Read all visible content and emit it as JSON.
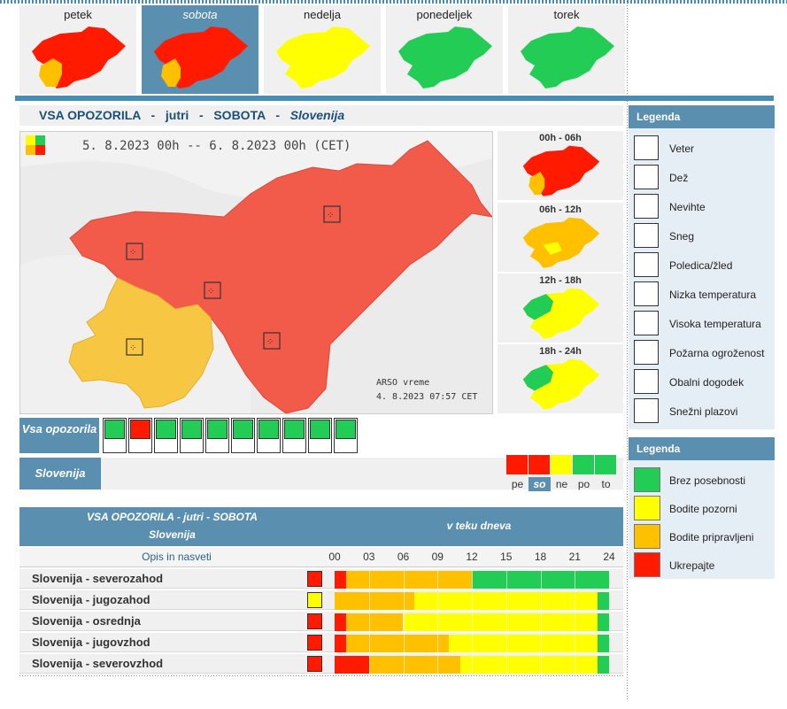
{
  "colors": {
    "green": "#22cc55",
    "yellow": "#ffff00",
    "orange": "#ffc000",
    "red": "#ff1a00",
    "map_red": "#f25a4a",
    "map_orange": "#f7c744",
    "accent": "#5a8fb0"
  },
  "days": [
    {
      "label": "petek",
      "selected": false,
      "level": "red"
    },
    {
      "label": "sobota",
      "selected": true,
      "level": "red"
    },
    {
      "label": "nedelja",
      "selected": false,
      "level": "yellow"
    },
    {
      "label": "ponedeljek",
      "selected": false,
      "level": "green"
    },
    {
      "label": "torek",
      "selected": false,
      "level": "green"
    }
  ],
  "main_title": {
    "prefix": "VSA OPOZORILA",
    "sep1": "-",
    "day": "jutri",
    "sep2": "-",
    "dayname": "SOBOTA",
    "sep3": "-",
    "region": "Slovenija"
  },
  "map": {
    "period": "5. 8.2023  00h  --  6. 8.2023  00h      (CET)",
    "credit": "ARSO vreme",
    "issued": "4. 8.2023  07:57 CET"
  },
  "periods": [
    {
      "label": "00h - 06h"
    },
    {
      "label": "06h - 12h"
    },
    {
      "label": "12h - 18h"
    },
    {
      "label": "18h - 24h"
    }
  ],
  "icon_row": {
    "label": "Vsa opozorila",
    "icons": [
      "wind-icon",
      "rain-icon",
      "thunderstorm-icon",
      "snow-icon",
      "ice-icon",
      "low-temperature-icon",
      "high-temperature-icon",
      "fire-icon",
      "coastal-icon",
      "avalanche-icon"
    ],
    "levels": [
      "green",
      "red",
      "green",
      "green",
      "green",
      "green",
      "green",
      "green",
      "green",
      "green"
    ]
  },
  "region_row": {
    "label": "Slovenija"
  },
  "week": [
    {
      "label": "pe",
      "level": "red",
      "selected": false
    },
    {
      "label": "so",
      "level": "red",
      "selected": true
    },
    {
      "label": "ne",
      "level": "yellow",
      "selected": false
    },
    {
      "label": "po",
      "level": "green",
      "selected": false
    },
    {
      "label": "to",
      "level": "green",
      "selected": false
    }
  ],
  "table": {
    "title1": "VSA OPOZORILA - jutri - SOBOTA",
    "title2": "Slovenija",
    "title3": "v teku dneva",
    "desc_header": "Opis in nasveti",
    "hours": [
      "00",
      "03",
      "06",
      "09",
      "12",
      "15",
      "18",
      "21",
      "24"
    ],
    "rows": [
      {
        "name": "Slovenija - severozahod",
        "icon_level": "red",
        "segments": [
          [
            "red",
            0,
            1
          ],
          [
            "orange",
            1,
            12
          ],
          [
            "green",
            12,
            24
          ]
        ]
      },
      {
        "name": "Slovenija - jugozahod",
        "icon_level": "yellow",
        "segments": [
          [
            "orange",
            0,
            7
          ],
          [
            "yellow",
            7,
            23
          ],
          [
            "green",
            23,
            24
          ]
        ]
      },
      {
        "name": "Slovenija - osrednja",
        "icon_level": "red",
        "segments": [
          [
            "red",
            0,
            1
          ],
          [
            "orange",
            1,
            6
          ],
          [
            "yellow",
            6,
            23
          ],
          [
            "green",
            23,
            24
          ]
        ]
      },
      {
        "name": "Slovenija - jugovzhod",
        "icon_level": "red",
        "segments": [
          [
            "red",
            0,
            1
          ],
          [
            "orange",
            1,
            10
          ],
          [
            "yellow",
            10,
            23
          ],
          [
            "green",
            23,
            24
          ]
        ]
      },
      {
        "name": "Slovenija - severovzhod",
        "icon_level": "red",
        "segments": [
          [
            "red",
            0,
            3
          ],
          [
            "orange",
            3,
            11
          ],
          [
            "yellow",
            11,
            23
          ],
          [
            "green",
            23,
            24
          ]
        ]
      }
    ]
  },
  "legend1": {
    "title": "Legenda",
    "items": [
      {
        "icon": "wind-icon",
        "label": "Veter"
      },
      {
        "icon": "rain-icon",
        "label": "Dež"
      },
      {
        "icon": "thunderstorm-icon",
        "label": "Nevihte"
      },
      {
        "icon": "snow-icon",
        "label": "Sneg"
      },
      {
        "icon": "ice-icon",
        "label": "Poledica/žled"
      },
      {
        "icon": "low-temperature-icon",
        "label": "Nizka temperatura"
      },
      {
        "icon": "high-temperature-icon",
        "label": "Visoka temperatura"
      },
      {
        "icon": "fire-icon",
        "label": "Požarna ogroženost"
      },
      {
        "icon": "coastal-icon",
        "label": "Obalni dogodek"
      },
      {
        "icon": "avalanche-icon",
        "label": "Snežni plazovi"
      }
    ]
  },
  "legend2": {
    "title": "Legenda",
    "items": [
      {
        "level": "green",
        "label": "Brez posebnosti"
      },
      {
        "level": "yellow",
        "label": "Bodite pozorni"
      },
      {
        "level": "orange",
        "label": "Bodite pripravljeni"
      },
      {
        "level": "red",
        "label": "Ukrepajte"
      }
    ]
  }
}
